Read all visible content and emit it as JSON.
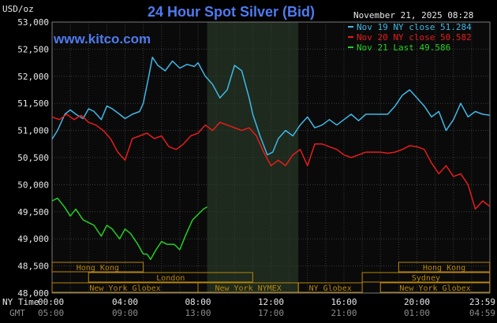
{
  "chart_data": {
    "type": "line",
    "title": "24 Hour Spot Silver (Bid)",
    "site": "www.kitco.com",
    "ylabel": "USD/oz",
    "date": "November 21, 2025 08:28",
    "ylim": [
      48.0,
      53.0
    ],
    "y_ticks": [
      "53,000",
      "52,500",
      "52,000",
      "51,500",
      "51,000",
      "50,500",
      "50,000",
      "49,500",
      "49,000",
      "48,500",
      "48,000"
    ],
    "x_ticks_ny": [
      "00:00",
      "04:00",
      "08:00",
      "12:00",
      "16:00",
      "20:00",
      "23:59"
    ],
    "x_ticks_gmt": [
      "05:00",
      "09:00",
      "13:00",
      "17:00",
      "21:00",
      "01:00",
      "04:59"
    ],
    "x_row_labels": {
      "ny": "NY Time",
      "gmt": "GMT"
    },
    "shaded_hours": [
      8.5,
      13.5
    ],
    "legend": [
      {
        "label": "Nov 19 NY close 51.284",
        "color": "#3fb8e8"
      },
      {
        "label": "Nov 20 NY close 50.582",
        "color": "#e81c1c"
      },
      {
        "label": "Nov 21 Last 49.586",
        "color": "#22d022"
      }
    ],
    "series": [
      {
        "name": "Nov 19",
        "color": "#3fb8e8",
        "x": [
          0,
          0.3,
          0.7,
          1.0,
          1.3,
          1.7,
          2.0,
          2.3,
          2.7,
          3.0,
          3.3,
          3.7,
          4.0,
          4.4,
          4.8,
          5.0,
          5.3,
          5.5,
          5.8,
          6.2,
          6.6,
          7.0,
          7.4,
          7.8,
          8.0,
          8.4,
          8.8,
          9.2,
          9.6,
          10.0,
          10.4,
          10.8,
          11.0,
          11.4,
          11.8,
          12.1,
          12.4,
          12.8,
          13.2,
          13.6,
          14.0,
          14.4,
          14.8,
          15.2,
          15.6,
          16.0,
          16.4,
          16.8,
          17.2,
          17.6,
          18.0,
          18.4,
          18.8,
          19.2,
          19.6,
          20.0,
          20.4,
          20.8,
          21.2,
          21.6,
          22.0,
          22.4,
          22.8,
          23.2,
          23.6,
          23.99
        ],
        "y": [
          50.84,
          51.0,
          51.3,
          51.38,
          51.3,
          51.22,
          51.4,
          51.35,
          51.2,
          51.45,
          51.4,
          51.3,
          51.22,
          51.3,
          51.35,
          51.5,
          52.0,
          52.35,
          52.2,
          52.1,
          52.28,
          52.15,
          52.22,
          52.18,
          52.25,
          52.0,
          51.85,
          51.6,
          51.75,
          52.2,
          52.1,
          51.6,
          51.3,
          50.9,
          50.55,
          50.6,
          50.85,
          51.0,
          50.9,
          51.1,
          51.25,
          51.05,
          51.1,
          51.2,
          51.1,
          51.2,
          51.3,
          51.18,
          51.3,
          51.3,
          51.3,
          51.3,
          51.45,
          51.65,
          51.75,
          51.6,
          51.45,
          51.25,
          51.35,
          51.0,
          51.2,
          51.5,
          51.25,
          51.35,
          51.3,
          51.28
        ]
      },
      {
        "name": "Nov 20",
        "color": "#e81c1c",
        "x": [
          0,
          0.4,
          0.8,
          1.2,
          1.6,
          2.0,
          2.4,
          2.8,
          3.2,
          3.6,
          4.0,
          4.4,
          4.8,
          5.2,
          5.6,
          6.0,
          6.4,
          6.8,
          7.2,
          7.6,
          8.0,
          8.4,
          8.8,
          9.2,
          9.6,
          10.0,
          10.4,
          10.8,
          11.2,
          11.6,
          12.0,
          12.4,
          12.8,
          13.2,
          13.6,
          14.0,
          14.4,
          14.8,
          15.2,
          15.6,
          16.0,
          16.4,
          16.8,
          17.2,
          17.6,
          18.0,
          18.4,
          18.8,
          19.2,
          19.6,
          20.0,
          20.4,
          20.8,
          21.2,
          21.6,
          22.0,
          22.4,
          22.8,
          23.2,
          23.6,
          23.99
        ],
        "y": [
          51.25,
          51.2,
          51.3,
          51.2,
          51.28,
          51.15,
          51.1,
          51.0,
          50.85,
          50.6,
          50.45,
          50.85,
          50.9,
          50.95,
          50.85,
          50.9,
          50.7,
          50.65,
          50.75,
          50.9,
          50.95,
          51.1,
          51.0,
          51.15,
          51.1,
          51.05,
          51.0,
          51.05,
          50.9,
          50.6,
          50.35,
          50.45,
          50.35,
          50.55,
          50.65,
          50.35,
          50.75,
          50.75,
          50.7,
          50.65,
          50.55,
          50.5,
          50.55,
          50.6,
          50.6,
          50.6,
          50.58,
          50.6,
          50.65,
          50.72,
          50.7,
          50.65,
          50.4,
          50.2,
          50.35,
          50.15,
          50.2,
          50.0,
          49.55,
          49.7,
          49.6
        ]
      },
      {
        "name": "Nov 21",
        "color": "#22d022",
        "x": [
          0,
          0.3,
          0.7,
          1.0,
          1.3,
          1.7,
          2.0,
          2.3,
          2.7,
          3.0,
          3.3,
          3.7,
          4.0,
          4.3,
          4.7,
          5.0,
          5.2,
          5.4,
          5.7,
          6.0,
          6.3,
          6.7,
          7.0,
          7.3,
          7.7,
          8.0,
          8.3,
          8.5
        ],
        "y": [
          49.7,
          49.75,
          49.58,
          49.42,
          49.55,
          49.35,
          49.3,
          49.25,
          49.05,
          49.25,
          49.18,
          49.0,
          49.18,
          49.1,
          48.9,
          48.72,
          48.72,
          48.62,
          48.8,
          48.95,
          48.9,
          48.9,
          48.8,
          49.05,
          49.35,
          49.45,
          49.55,
          49.59
        ]
      }
    ],
    "sessions": [
      {
        "label": "Hong Kong",
        "start": 0,
        "end": 5.0,
        "row": 0
      },
      {
        "label": "Hong Kong",
        "start": 19.0,
        "end": 23.99,
        "row": 0
      },
      {
        "label": "London",
        "start": 2.0,
        "end": 11.0,
        "row": 1
      },
      {
        "label": "Sydney",
        "start": 17.0,
        "end": 23.99,
        "row": 1
      },
      {
        "label": "New York Globex",
        "start": 0,
        "end": 8.0,
        "row": 2
      },
      {
        "label": "New York NYMEX",
        "start": 8.0,
        "end": 13.5,
        "row": 2
      },
      {
        "label": "NY Globex",
        "start": 13.5,
        "end": 17.0,
        "row": 2
      },
      {
        "label": "New York Globex",
        "start": 18.0,
        "end": 23.99,
        "row": 2
      }
    ]
  }
}
